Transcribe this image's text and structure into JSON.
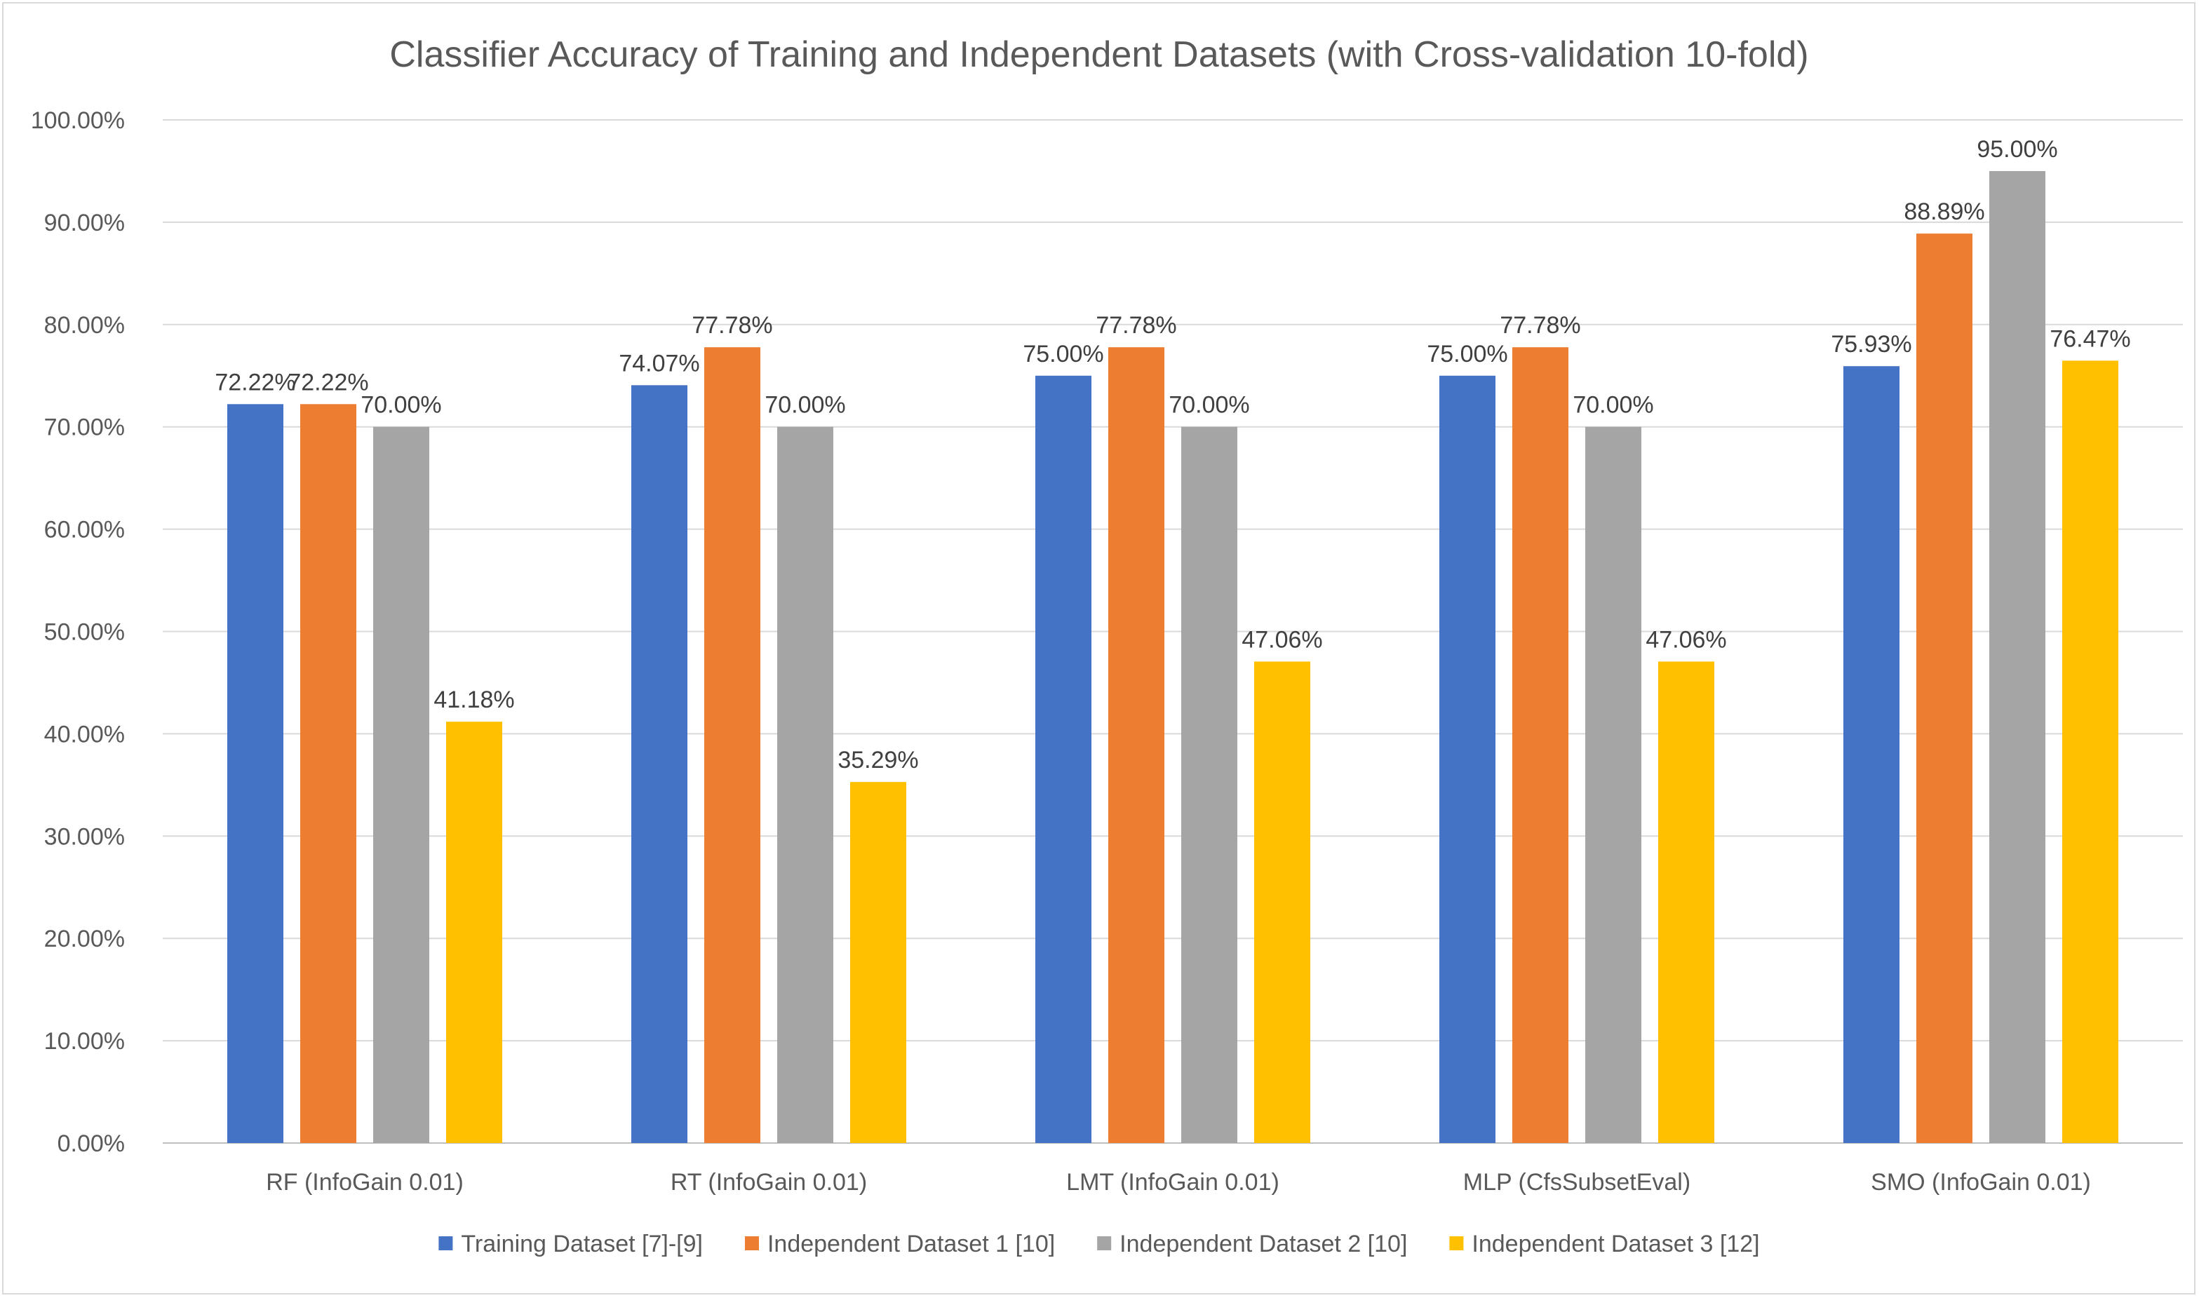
{
  "chart_data": {
    "type": "bar",
    "title": "Classifier Accuracy of Training and Independent Datasets (with Cross-validation 10-fold)",
    "xlabel": "",
    "ylabel": "",
    "ylim": [
      0,
      100
    ],
    "y_tick_step": 10,
    "y_tick_labels": [
      "0.00%",
      "10.00%",
      "20.00%",
      "30.00%",
      "40.00%",
      "50.00%",
      "60.00%",
      "70.00%",
      "80.00%",
      "90.00%",
      "100.00%"
    ],
    "grid": true,
    "legend_position": "bottom",
    "categories": [
      "RF (InfoGain 0.01)",
      "RT (InfoGain 0.01)",
      "LMT (InfoGain 0.01)",
      "MLP (CfsSubsetEval)",
      "SMO (InfoGain 0.01)"
    ],
    "series": [
      {
        "name": "Training Dataset [7]-[9]",
        "color": "#4472c4",
        "values": [
          72.22,
          74.07,
          75.0,
          75.0,
          75.93
        ],
        "labels": [
          "72.22%",
          "74.07%",
          "75.00%",
          "75.00%",
          "75.93%"
        ]
      },
      {
        "name": "Independent Dataset 1 [10]",
        "color": "#ed7d31",
        "values": [
          72.22,
          77.78,
          77.78,
          77.78,
          88.89
        ],
        "labels": [
          "72.22%",
          "77.78%",
          "77.78%",
          "77.78%",
          "88.89%"
        ]
      },
      {
        "name": "Independent Dataset 2 [10]",
        "color": "#a5a5a5",
        "values": [
          70.0,
          70.0,
          70.0,
          70.0,
          95.0
        ],
        "labels": [
          "70.00%",
          "70.00%",
          "70.00%",
          "70.00%",
          "95.00%"
        ]
      },
      {
        "name": "Independent Dataset 3 [12]",
        "color": "#ffc000",
        "values": [
          41.18,
          35.29,
          47.06,
          47.06,
          76.47
        ],
        "labels": [
          "41.18%",
          "35.29%",
          "47.06%",
          "47.06%",
          "76.47%"
        ]
      }
    ],
    "grid_color": "#d9d9d9",
    "axis_color": "#bfbfbf"
  }
}
